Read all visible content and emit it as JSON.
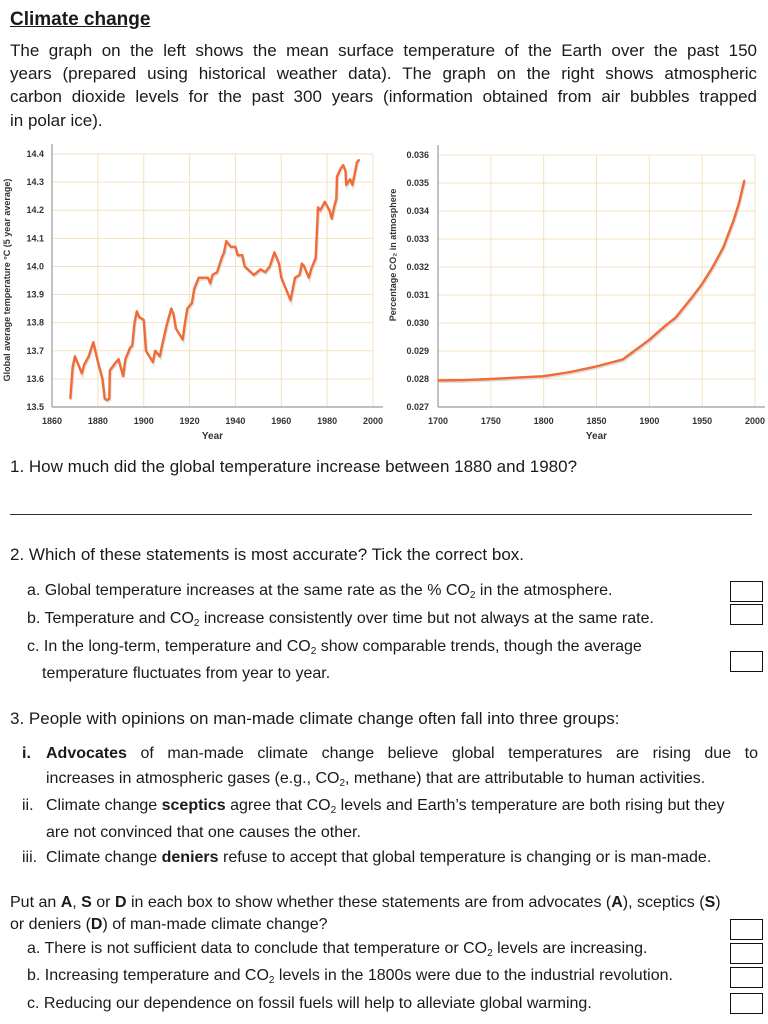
{
  "title": "Climate change",
  "intro": [
    "The graph on the left shows the mean surface temperature of the Earth over the past 150",
    "years (prepared using historical weather data). The graph on the right shows atmospheric",
    "carbon dioxide levels for the past 300 years (information obtained from air bubbles trapped",
    "in polar ice)."
  ],
  "q1": {
    "text": "1. How much did the global temperature increase between 1880 and 1980?"
  },
  "q2": {
    "text": "2. Which of these statements is most accurate? Tick the correct box.",
    "a_pre": "a. Global temperature increases at the same rate as the % CO",
    "a_sub": "2",
    "a_post": " in the atmosphere.",
    "b_pre": "b. Temperature and CO",
    "b_sub": "2",
    "b_post": " increase consistently over time but not always at the same rate.",
    "c_pre": "c. In the long-term, temperature and CO",
    "c_sub": "2",
    "c_post": " show comparable trends, though the average",
    "c_cont": "temperature fluctuates from year to year."
  },
  "q3": {
    "text": "3. People with opinions on man-made climate change often fall into three groups:",
    "i_num": "i.",
    "i_bold": "Advocates",
    "i_rest": " of man-made climate change believe global temperatures are rising due to",
    "i_cont_pre": "increases in atmospheric gases (e.g., CO",
    "i_cont_sub": "2",
    "i_cont_post": ", methane) that are attributable to human activities.",
    "ii_num": "ii.",
    "ii_pre": "Climate change ",
    "ii_bold": "sceptics",
    "ii_mid": " agree that CO",
    "ii_sub": "2",
    "ii_post": " levels and Earth’s temperature are both rising but they",
    "ii_cont": "are not convinced that one causes the other.",
    "iii_num": "iii.",
    "iii_pre": "Climate change ",
    "iii_bold": "deniers",
    "iii_post": " refuse to accept that global temperature is changing or is man-made."
  },
  "q4": {
    "p1": "Put an ",
    "A": "A",
    "c1": ", ",
    "S": "S",
    "c2": " or ",
    "D": "D",
    "p2": " in each box to show whether these statements are from advocates (",
    "A2": "A",
    "p3": "), sceptics (",
    "S2": "S",
    "p4": ")",
    "l2a": "or deniers (",
    "D2": "D",
    "l2b": ") of man-made climate change?",
    "a_pre": "a. There is not sufficient data to conclude that temperature or CO",
    "a_sub": "2",
    "a_post": " levels are increasing.",
    "b_pre": "b. Increasing temperature and CO",
    "b_sub": "2",
    "b_post": " levels in the 1800s were due to the industrial revolution.",
    "c": "c. Reducing our dependence on fossil fuels will help to alleviate global warming."
  },
  "colors": {
    "line": "#f26a35",
    "grid": "#f4e2bf",
    "axis": "#9a9a9a"
  },
  "chart_data": [
    {
      "type": "line",
      "xlabel": "Year",
      "ylabel": "Global average temperature  °C (5 year average)",
      "xlim": [
        1860,
        2000
      ],
      "ylim": [
        13.5,
        14.4
      ],
      "xticks": [
        "1860",
        "1880",
        "1900",
        "1920",
        "1940",
        "1960",
        "1980",
        "2000"
      ],
      "yticks": [
        "13.5",
        "13.6",
        "13.7",
        "13.8",
        "13.9",
        "14.0",
        "14.1",
        "14.2",
        "14.3",
        "14.4"
      ],
      "grid": true,
      "x": [
        1868,
        1869,
        1870,
        1872,
        1873,
        1874,
        1876,
        1878,
        1880,
        1882,
        1883,
        1884,
        1885,
        1885.2,
        1887,
        1889,
        1891,
        1892,
        1894,
        1895,
        1896,
        1897,
        1898,
        1900,
        1901,
        1904,
        1905,
        1907,
        1908,
        1910,
        1912,
        1913,
        1914,
        1917,
        1918,
        1919,
        1921,
        1922,
        1924,
        1928,
        1929,
        1930,
        1932,
        1934,
        1935,
        1936,
        1938,
        1940,
        1941,
        1943,
        1944,
        1948,
        1951,
        1953,
        1955,
        1957,
        1959,
        1960,
        1962,
        1964,
        1966,
        1968,
        1969,
        1970,
        1972,
        1973,
        1975,
        1976,
        1977,
        1979,
        1981,
        1982,
        1983,
        1984,
        1984.3,
        1986,
        1987,
        1988,
        1988.3,
        1990,
        1991,
        1992,
        1993,
        1994
      ],
      "y": [
        13.53,
        13.64,
        13.68,
        13.64,
        13.62,
        13.65,
        13.68,
        13.73,
        13.66,
        13.6,
        13.53,
        13.525,
        13.53,
        13.63,
        13.65,
        13.67,
        13.61,
        13.67,
        13.71,
        13.72,
        13.8,
        13.84,
        13.82,
        13.81,
        13.7,
        13.66,
        13.7,
        13.68,
        13.72,
        13.79,
        13.85,
        13.83,
        13.78,
        13.74,
        13.8,
        13.85,
        13.87,
        13.92,
        13.96,
        13.96,
        13.94,
        13.97,
        13.98,
        14.03,
        14.05,
        14.09,
        14.07,
        14.07,
        14.04,
        14.04,
        14.0,
        13.97,
        13.99,
        13.98,
        14.0,
        14.05,
        14.01,
        13.96,
        13.92,
        13.88,
        13.96,
        13.97,
        14.01,
        14.0,
        13.96,
        13.99,
        14.03,
        14.21,
        14.2,
        14.23,
        14.2,
        14.17,
        14.21,
        14.24,
        14.32,
        14.35,
        14.36,
        14.34,
        14.29,
        14.31,
        14.29,
        14.33,
        14.37,
        14.38
      ]
    },
    {
      "type": "line",
      "xlabel": "Year",
      "ylabel": "Percentage CO₂ in atmosphere",
      "xlim": [
        1700,
        2000
      ],
      "ylim": [
        0.027,
        0.036
      ],
      "xticks": [
        "1700",
        "1750",
        "1800",
        "1850",
        "1900",
        "1950",
        "2000"
      ],
      "yticks": [
        "0.027",
        "0.028",
        "0.029",
        "0.030",
        "0.031",
        "0.032",
        "0.033",
        "0.034",
        "0.035",
        "0.036"
      ],
      "grid": true,
      "x": [
        1700,
        1725,
        1750,
        1775,
        1800,
        1825,
        1850,
        1875,
        1900,
        1915,
        1925,
        1940,
        1950,
        1960,
        1970,
        1980,
        1985,
        1990
      ],
      "y": [
        0.02795,
        0.02796,
        0.028,
        0.02805,
        0.0281,
        0.02825,
        0.02845,
        0.0287,
        0.0294,
        0.0299,
        0.0302,
        0.0309,
        0.0314,
        0.032,
        0.0327,
        0.0337,
        0.0343,
        0.0351
      ]
    }
  ]
}
